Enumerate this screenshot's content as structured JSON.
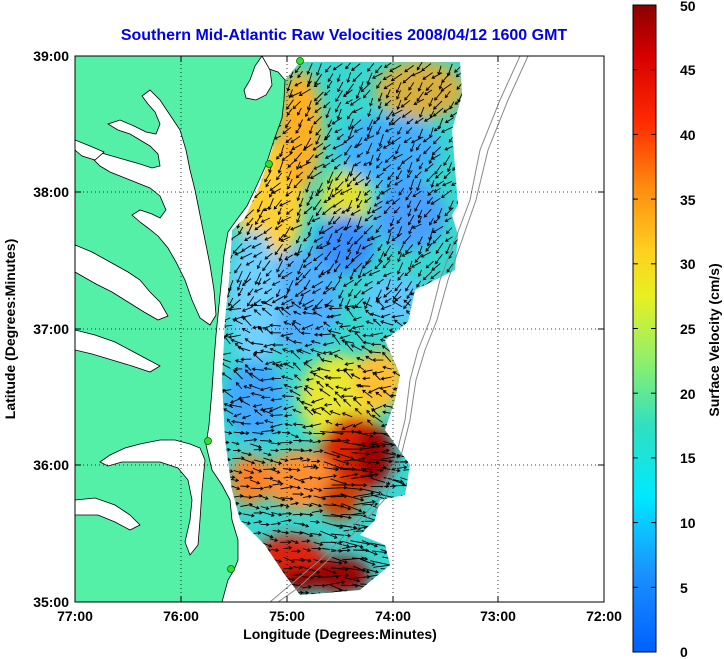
{
  "title": "Southern Mid-Atlantic Raw Velocities 2008/04/12 1600 GMT",
  "xlabel": "Longitude (Degrees:Minutes)",
  "ylabel": "Latitude (Degrees:Minutes)",
  "colorbar_label": "Surface Velocity (cm/s)",
  "x_ticks": [
    "77:00",
    "76:00",
    "75:00",
    "74:00",
    "73:00",
    "72:00"
  ],
  "y_ticks": [
    "39:00",
    "38:00",
    "37:00",
    "36:00",
    "35:00"
  ],
  "colorbar_ticks": [
    "0",
    "5",
    "10",
    "15",
    "20",
    "25",
    "30",
    "35",
    "40",
    "45",
    "50"
  ],
  "colors": {
    "land": "#55f0a8",
    "water": "#ffffff",
    "title": "#0000ee",
    "station": "#33dd33"
  },
  "map": {
    "lon_range": [
      -77,
      -72
    ],
    "lat_range": [
      35,
      39
    ],
    "velocity_range_cm_s": [
      0,
      50
    ],
    "grid": "dotted"
  }
}
